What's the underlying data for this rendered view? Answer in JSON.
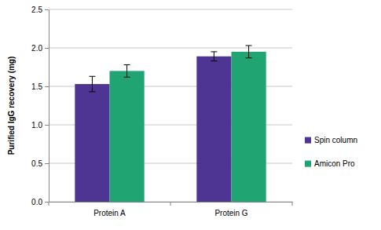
{
  "chart_data": {
    "type": "bar",
    "y_label": "Purified IgG recovery (mg)",
    "categories": [
      "Protein A",
      "Protein G"
    ],
    "series": [
      {
        "name": "Spin column",
        "color": "#4f3593",
        "values": [
          1.53,
          1.89
        ],
        "errors": [
          0.1,
          0.06
        ]
      },
      {
        "name": "Amicon Pro",
        "color": "#1fa472",
        "values": [
          1.7,
          1.95
        ],
        "errors": [
          0.08,
          0.08
        ]
      }
    ],
    "ylim": [
      0,
      2.5
    ],
    "yticks": [
      {
        "value": 0,
        "label": "0.0"
      },
      0.5,
      {
        "value": 1,
        "label": "1.0"
      },
      1.5,
      {
        "value": 2,
        "label": "2.0"
      },
      2.5
    ],
    "grid": true,
    "legend": "right"
  }
}
